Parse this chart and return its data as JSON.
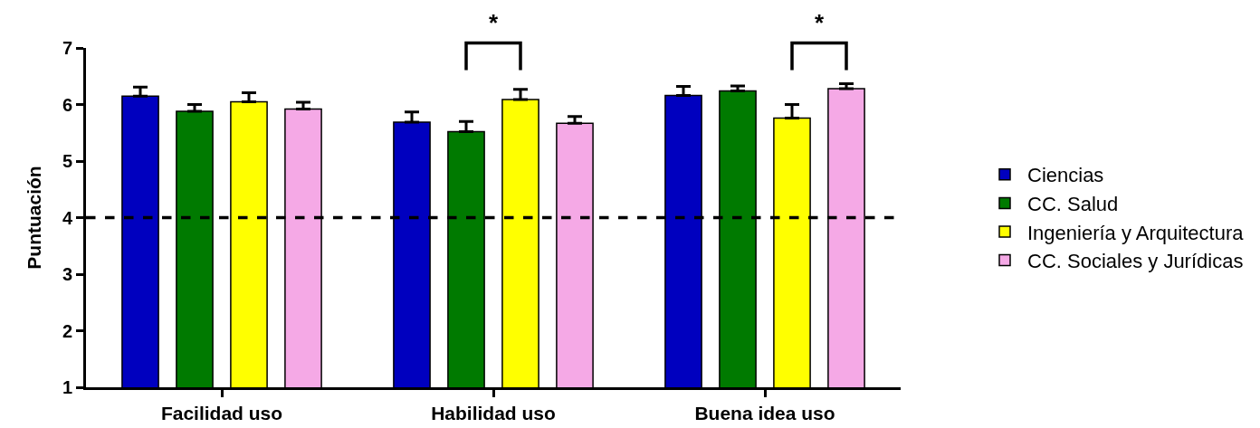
{
  "chart_data": {
    "type": "bar",
    "ylabel": "Puntuación",
    "categories": [
      "Facilidad uso",
      "Habilidad uso",
      "Buena idea uso"
    ],
    "series": [
      {
        "name": "Ciencias",
        "color": "#0000bf",
        "values": [
          6.15,
          5.69,
          6.16
        ],
        "errors": [
          [
            6.15,
            6.31
          ],
          [
            5.69,
            5.87
          ],
          [
            6.16,
            6.32
          ]
        ]
      },
      {
        "name": "CC. Salud",
        "color": "#007a00",
        "values": [
          5.88,
          5.52,
          6.24
        ],
        "errors": [
          [
            5.88,
            6.0
          ],
          [
            5.52,
            5.7
          ],
          [
            6.24,
            6.33
          ]
        ]
      },
      {
        "name": "Ingeniería y Arquitectura",
        "color": "#ffff00",
        "values": [
          6.05,
          6.09,
          5.76
        ],
        "errors": [
          [
            6.05,
            6.21
          ],
          [
            6.09,
            6.27
          ],
          [
            5.76,
            6.0
          ]
        ]
      },
      {
        "name": "CC. Sociales y Jurídicas",
        "color": "#f5a9e6",
        "values": [
          5.92,
          5.67,
          6.28
        ],
        "errors": [
          [
            5.92,
            6.04
          ],
          [
            5.67,
            5.79
          ],
          [
            6.28,
            6.37
          ]
        ]
      }
    ],
    "ylim": [
      1,
      7
    ],
    "yticks": [
      1,
      2,
      3,
      4,
      5,
      6,
      7
    ],
    "grid": false,
    "legend": "right",
    "ref_lines": [
      {
        "axis": "y",
        "value": 4,
        "color": "#000000",
        "line_style": "dashed"
      }
    ],
    "annotations": [
      "*",
      "*"
    ]
  }
}
